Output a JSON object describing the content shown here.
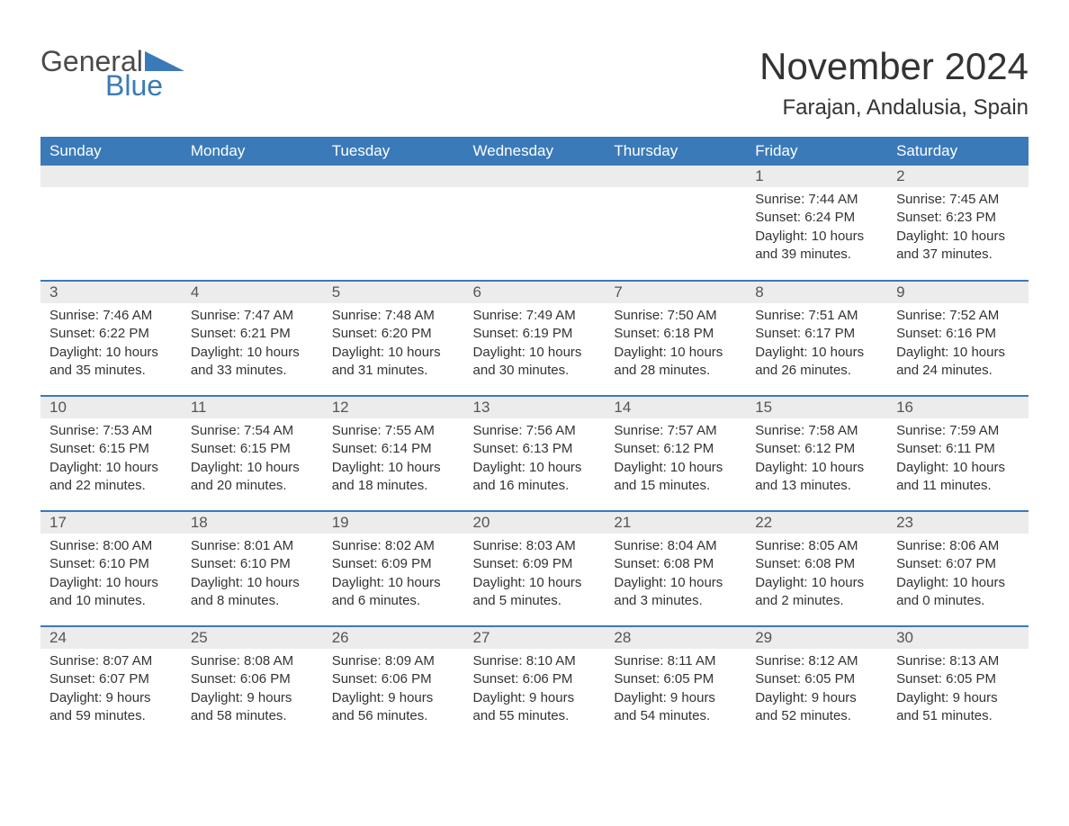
{
  "logo": {
    "text_general": "General",
    "text_blue": "Blue",
    "shape_color": "#3a7ab8"
  },
  "header": {
    "month_title": "November 2024",
    "location": "Farajan, Andalusia, Spain"
  },
  "colors": {
    "header_bg": "#3a7ab8",
    "header_text": "#ffffff",
    "day_num_bg": "#ececec",
    "border": "#3a7ab8",
    "text": "#333333"
  },
  "weekdays": [
    "Sunday",
    "Monday",
    "Tuesday",
    "Wednesday",
    "Thursday",
    "Friday",
    "Saturday"
  ],
  "weeks": [
    [
      null,
      null,
      null,
      null,
      null,
      {
        "d": "1",
        "sr": "Sunrise: 7:44 AM",
        "ss": "Sunset: 6:24 PM",
        "dl": "Daylight: 10 hours and 39 minutes."
      },
      {
        "d": "2",
        "sr": "Sunrise: 7:45 AM",
        "ss": "Sunset: 6:23 PM",
        "dl": "Daylight: 10 hours and 37 minutes."
      }
    ],
    [
      {
        "d": "3",
        "sr": "Sunrise: 7:46 AM",
        "ss": "Sunset: 6:22 PM",
        "dl": "Daylight: 10 hours and 35 minutes."
      },
      {
        "d": "4",
        "sr": "Sunrise: 7:47 AM",
        "ss": "Sunset: 6:21 PM",
        "dl": "Daylight: 10 hours and 33 minutes."
      },
      {
        "d": "5",
        "sr": "Sunrise: 7:48 AM",
        "ss": "Sunset: 6:20 PM",
        "dl": "Daylight: 10 hours and 31 minutes."
      },
      {
        "d": "6",
        "sr": "Sunrise: 7:49 AM",
        "ss": "Sunset: 6:19 PM",
        "dl": "Daylight: 10 hours and 30 minutes."
      },
      {
        "d": "7",
        "sr": "Sunrise: 7:50 AM",
        "ss": "Sunset: 6:18 PM",
        "dl": "Daylight: 10 hours and 28 minutes."
      },
      {
        "d": "8",
        "sr": "Sunrise: 7:51 AM",
        "ss": "Sunset: 6:17 PM",
        "dl": "Daylight: 10 hours and 26 minutes."
      },
      {
        "d": "9",
        "sr": "Sunrise: 7:52 AM",
        "ss": "Sunset: 6:16 PM",
        "dl": "Daylight: 10 hours and 24 minutes."
      }
    ],
    [
      {
        "d": "10",
        "sr": "Sunrise: 7:53 AM",
        "ss": "Sunset: 6:15 PM",
        "dl": "Daylight: 10 hours and 22 minutes."
      },
      {
        "d": "11",
        "sr": "Sunrise: 7:54 AM",
        "ss": "Sunset: 6:15 PM",
        "dl": "Daylight: 10 hours and 20 minutes."
      },
      {
        "d": "12",
        "sr": "Sunrise: 7:55 AM",
        "ss": "Sunset: 6:14 PM",
        "dl": "Daylight: 10 hours and 18 minutes."
      },
      {
        "d": "13",
        "sr": "Sunrise: 7:56 AM",
        "ss": "Sunset: 6:13 PM",
        "dl": "Daylight: 10 hours and 16 minutes."
      },
      {
        "d": "14",
        "sr": "Sunrise: 7:57 AM",
        "ss": "Sunset: 6:12 PM",
        "dl": "Daylight: 10 hours and 15 minutes."
      },
      {
        "d": "15",
        "sr": "Sunrise: 7:58 AM",
        "ss": "Sunset: 6:12 PM",
        "dl": "Daylight: 10 hours and 13 minutes."
      },
      {
        "d": "16",
        "sr": "Sunrise: 7:59 AM",
        "ss": "Sunset: 6:11 PM",
        "dl": "Daylight: 10 hours and 11 minutes."
      }
    ],
    [
      {
        "d": "17",
        "sr": "Sunrise: 8:00 AM",
        "ss": "Sunset: 6:10 PM",
        "dl": "Daylight: 10 hours and 10 minutes."
      },
      {
        "d": "18",
        "sr": "Sunrise: 8:01 AM",
        "ss": "Sunset: 6:10 PM",
        "dl": "Daylight: 10 hours and 8 minutes."
      },
      {
        "d": "19",
        "sr": "Sunrise: 8:02 AM",
        "ss": "Sunset: 6:09 PM",
        "dl": "Daylight: 10 hours and 6 minutes."
      },
      {
        "d": "20",
        "sr": "Sunrise: 8:03 AM",
        "ss": "Sunset: 6:09 PM",
        "dl": "Daylight: 10 hours and 5 minutes."
      },
      {
        "d": "21",
        "sr": "Sunrise: 8:04 AM",
        "ss": "Sunset: 6:08 PM",
        "dl": "Daylight: 10 hours and 3 minutes."
      },
      {
        "d": "22",
        "sr": "Sunrise: 8:05 AM",
        "ss": "Sunset: 6:08 PM",
        "dl": "Daylight: 10 hours and 2 minutes."
      },
      {
        "d": "23",
        "sr": "Sunrise: 8:06 AM",
        "ss": "Sunset: 6:07 PM",
        "dl": "Daylight: 10 hours and 0 minutes."
      }
    ],
    [
      {
        "d": "24",
        "sr": "Sunrise: 8:07 AM",
        "ss": "Sunset: 6:07 PM",
        "dl": "Daylight: 9 hours and 59 minutes."
      },
      {
        "d": "25",
        "sr": "Sunrise: 8:08 AM",
        "ss": "Sunset: 6:06 PM",
        "dl": "Daylight: 9 hours and 58 minutes."
      },
      {
        "d": "26",
        "sr": "Sunrise: 8:09 AM",
        "ss": "Sunset: 6:06 PM",
        "dl": "Daylight: 9 hours and 56 minutes."
      },
      {
        "d": "27",
        "sr": "Sunrise: 8:10 AM",
        "ss": "Sunset: 6:06 PM",
        "dl": "Daylight: 9 hours and 55 minutes."
      },
      {
        "d": "28",
        "sr": "Sunrise: 8:11 AM",
        "ss": "Sunset: 6:05 PM",
        "dl": "Daylight: 9 hours and 54 minutes."
      },
      {
        "d": "29",
        "sr": "Sunrise: 8:12 AM",
        "ss": "Sunset: 6:05 PM",
        "dl": "Daylight: 9 hours and 52 minutes."
      },
      {
        "d": "30",
        "sr": "Sunrise: 8:13 AM",
        "ss": "Sunset: 6:05 PM",
        "dl": "Daylight: 9 hours and 51 minutes."
      }
    ]
  ]
}
